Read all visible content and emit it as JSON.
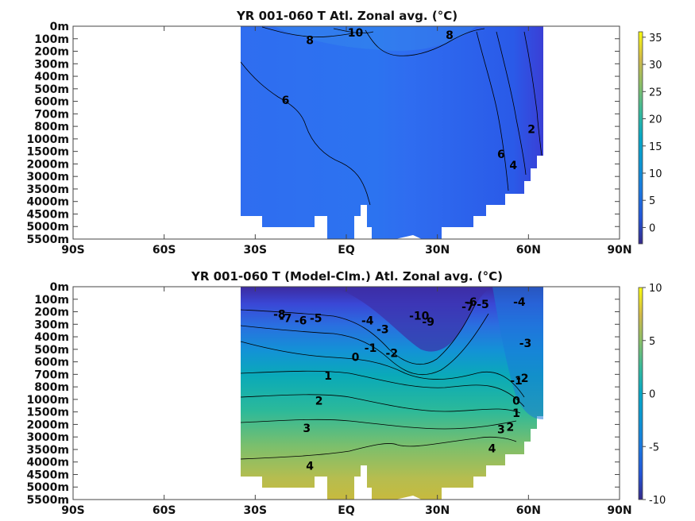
{
  "chart_data": [
    {
      "type": "heatmap",
      "title": "YR 001-060 T Atl. Zonal avg. (°C)",
      "x_tick_labels": [
        "90S",
        "60S",
        "30S",
        "EQ",
        "30N",
        "60N",
        "90N"
      ],
      "x_ticks_deg": [
        -90,
        -60,
        -30,
        0,
        30,
        60,
        90
      ],
      "y_tick_labels": [
        "0m",
        "100m",
        "200m",
        "300m",
        "400m",
        "500m",
        "600m",
        "700m",
        "800m",
        "1000m",
        "1500m",
        "2000m",
        "3000m",
        "3500m",
        "4000m",
        "4500m",
        "5000m",
        "5500m"
      ],
      "colorbar": {
        "min": -3,
        "max": 36,
        "ticks": [
          0,
          5,
          10,
          15,
          20,
          25,
          30,
          35
        ]
      },
      "contour_labels": [
        {
          "text": "8",
          "lat": -12,
          "level": 1.1
        },
        {
          "text": "10",
          "lat": 3,
          "level": 0.5
        },
        {
          "text": "8",
          "lat": 34,
          "level": 0.7
        },
        {
          "text": "6",
          "lat": -20,
          "level": 5.9
        },
        {
          "text": "2",
          "lat": 61,
          "level": 8.2
        },
        {
          "text": "6",
          "lat": 51,
          "level": 10.2
        },
        {
          "text": "4",
          "lat": 55,
          "level": 11.1
        }
      ]
    },
    {
      "type": "heatmap",
      "title": "YR 001-060 T (Model-Clm.) Atl. Zonal avg. (°C)",
      "x_tick_labels": [
        "90S",
        "60S",
        "30S",
        "EQ",
        "30N",
        "60N",
        "90N"
      ],
      "x_ticks_deg": [
        -90,
        -60,
        -30,
        0,
        30,
        60,
        90
      ],
      "y_tick_labels": [
        "0m",
        "100m",
        "200m",
        "300m",
        "400m",
        "500m",
        "600m",
        "700m",
        "800m",
        "1000m",
        "1500m",
        "2000m",
        "3000m",
        "3500m",
        "4000m",
        "4500m",
        "5000m",
        "5500m"
      ],
      "colorbar": {
        "min": -10,
        "max": 10,
        "ticks": [
          -10,
          -5,
          0,
          5,
          10
        ]
      },
      "contour_labels": [
        {
          "text": "-8",
          "lat": -22,
          "level": 2.2
        },
        {
          "text": "-7",
          "lat": -20,
          "level": 2.5
        },
        {
          "text": "-6",
          "lat": -15,
          "level": 2.7
        },
        {
          "text": "-5",
          "lat": -10,
          "level": 2.5
        },
        {
          "text": "-4",
          "lat": 7,
          "level": 2.7
        },
        {
          "text": "-3",
          "lat": 12,
          "level": 3.4
        },
        {
          "text": "-2",
          "lat": 15,
          "level": 5.3
        },
        {
          "text": "-1",
          "lat": 8,
          "level": 4.9
        },
        {
          "text": "0",
          "lat": 3,
          "level": 5.6
        },
        {
          "text": "-10",
          "lat": 24,
          "level": 2.3
        },
        {
          "text": "-9",
          "lat": 27,
          "level": 2.8
        },
        {
          "text": "-7",
          "lat": 40,
          "level": 1.6
        },
        {
          "text": "-6",
          "lat": 41,
          "level": 1.2
        },
        {
          "text": "-5",
          "lat": 45,
          "level": 1.4
        },
        {
          "text": "-4",
          "lat": 57,
          "level": 1.2
        },
        {
          "text": "-3",
          "lat": 59,
          "level": 4.5
        },
        {
          "text": "-2",
          "lat": 58,
          "level": 7.3
        },
        {
          "text": "-1",
          "lat": 56,
          "level": 7.5
        },
        {
          "text": "0",
          "lat": 56,
          "level": 9.1
        },
        {
          "text": "1",
          "lat": 56,
          "level": 10.1
        },
        {
          "text": "2",
          "lat": 54,
          "level": 11.2
        },
        {
          "text": "3",
          "lat": 51,
          "level": 11.4
        },
        {
          "text": "4",
          "lat": 48,
          "level": 12.9
        },
        {
          "text": "1",
          "lat": -6,
          "level": 7.1
        },
        {
          "text": "2",
          "lat": -9,
          "level": 9.1
        },
        {
          "text": "3",
          "lat": -13,
          "level": 11.3
        },
        {
          "text": "4",
          "lat": -12,
          "level": 14.3
        }
      ]
    }
  ]
}
